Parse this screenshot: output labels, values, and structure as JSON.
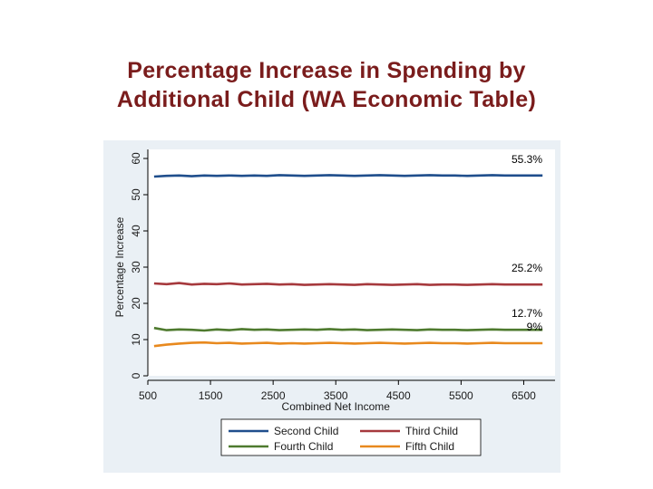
{
  "slide": {
    "title_line1": "Percentage Increase in Spending by",
    "title_line2": "Additional Child (WA Economic Table)"
  },
  "chart_data": {
    "type": "line",
    "title": "Percentage Increase in Spending by Additional Child (WA Economic Table)",
    "xlabel": "Combined Net Income",
    "ylabel": "Percentage Increase",
    "xlim": [
      500,
      7000
    ],
    "ylim": [
      0,
      60
    ],
    "x_ticks": [
      500,
      1500,
      2500,
      3500,
      4500,
      5500,
      6500
    ],
    "y_ticks": [
      0,
      10,
      20,
      30,
      40,
      50,
      60
    ],
    "grid": false,
    "legend_position": "bottom",
    "x": [
      600,
      800,
      1000,
      1200,
      1400,
      1600,
      1800,
      2000,
      2200,
      2400,
      2600,
      2800,
      3000,
      3200,
      3400,
      3600,
      3800,
      4000,
      4200,
      4400,
      4600,
      4800,
      5000,
      5200,
      5400,
      5600,
      5800,
      6000,
      6200,
      6400,
      6600,
      6800
    ],
    "series": [
      {
        "name": "Second Child",
        "color": "#1f4e8c",
        "values": [
          55.0,
          55.2,
          55.3,
          55.1,
          55.3,
          55.2,
          55.3,
          55.2,
          55.3,
          55.2,
          55.4,
          55.3,
          55.2,
          55.3,
          55.4,
          55.3,
          55.2,
          55.3,
          55.4,
          55.3,
          55.2,
          55.3,
          55.4,
          55.3,
          55.3,
          55.2,
          55.3,
          55.4,
          55.3,
          55.3,
          55.3,
          55.3
        ]
      },
      {
        "name": "Third Child",
        "color": "#a6393d",
        "values": [
          25.5,
          25.3,
          25.6,
          25.2,
          25.4,
          25.3,
          25.5,
          25.2,
          25.3,
          25.4,
          25.2,
          25.3,
          25.1,
          25.2,
          25.3,
          25.2,
          25.1,
          25.3,
          25.2,
          25.1,
          25.2,
          25.3,
          25.1,
          25.2,
          25.2,
          25.1,
          25.2,
          25.3,
          25.2,
          25.2,
          25.2,
          25.2
        ]
      },
      {
        "name": "Fourth Child",
        "color": "#4e7a2e",
        "values": [
          13.2,
          12.6,
          12.8,
          12.7,
          12.5,
          12.8,
          12.6,
          12.9,
          12.7,
          12.8,
          12.6,
          12.7,
          12.8,
          12.7,
          12.9,
          12.7,
          12.8,
          12.6,
          12.7,
          12.8,
          12.7,
          12.6,
          12.8,
          12.7,
          12.7,
          12.6,
          12.7,
          12.8,
          12.7,
          12.7,
          12.7,
          12.7
        ]
      },
      {
        "name": "Fifth Child",
        "color": "#e8891e",
        "values": [
          8.2,
          8.6,
          8.9,
          9.1,
          9.2,
          9.0,
          9.1,
          8.9,
          9.0,
          9.1,
          8.9,
          9.0,
          8.9,
          9.0,
          9.1,
          9.0,
          8.9,
          9.0,
          9.1,
          9.0,
          8.9,
          9.0,
          9.1,
          9.0,
          9.0,
          8.9,
          9.0,
          9.1,
          9.0,
          9.0,
          9.0,
          9.0
        ]
      }
    ],
    "annotations": [
      {
        "text": "55.3%",
        "series": "Second Child"
      },
      {
        "text": "25.2%",
        "series": "Third Child"
      },
      {
        "text": "12.7%",
        "series": "Fourth Child"
      },
      {
        "text": "9%",
        "series": "Fifth Child"
      }
    ]
  }
}
